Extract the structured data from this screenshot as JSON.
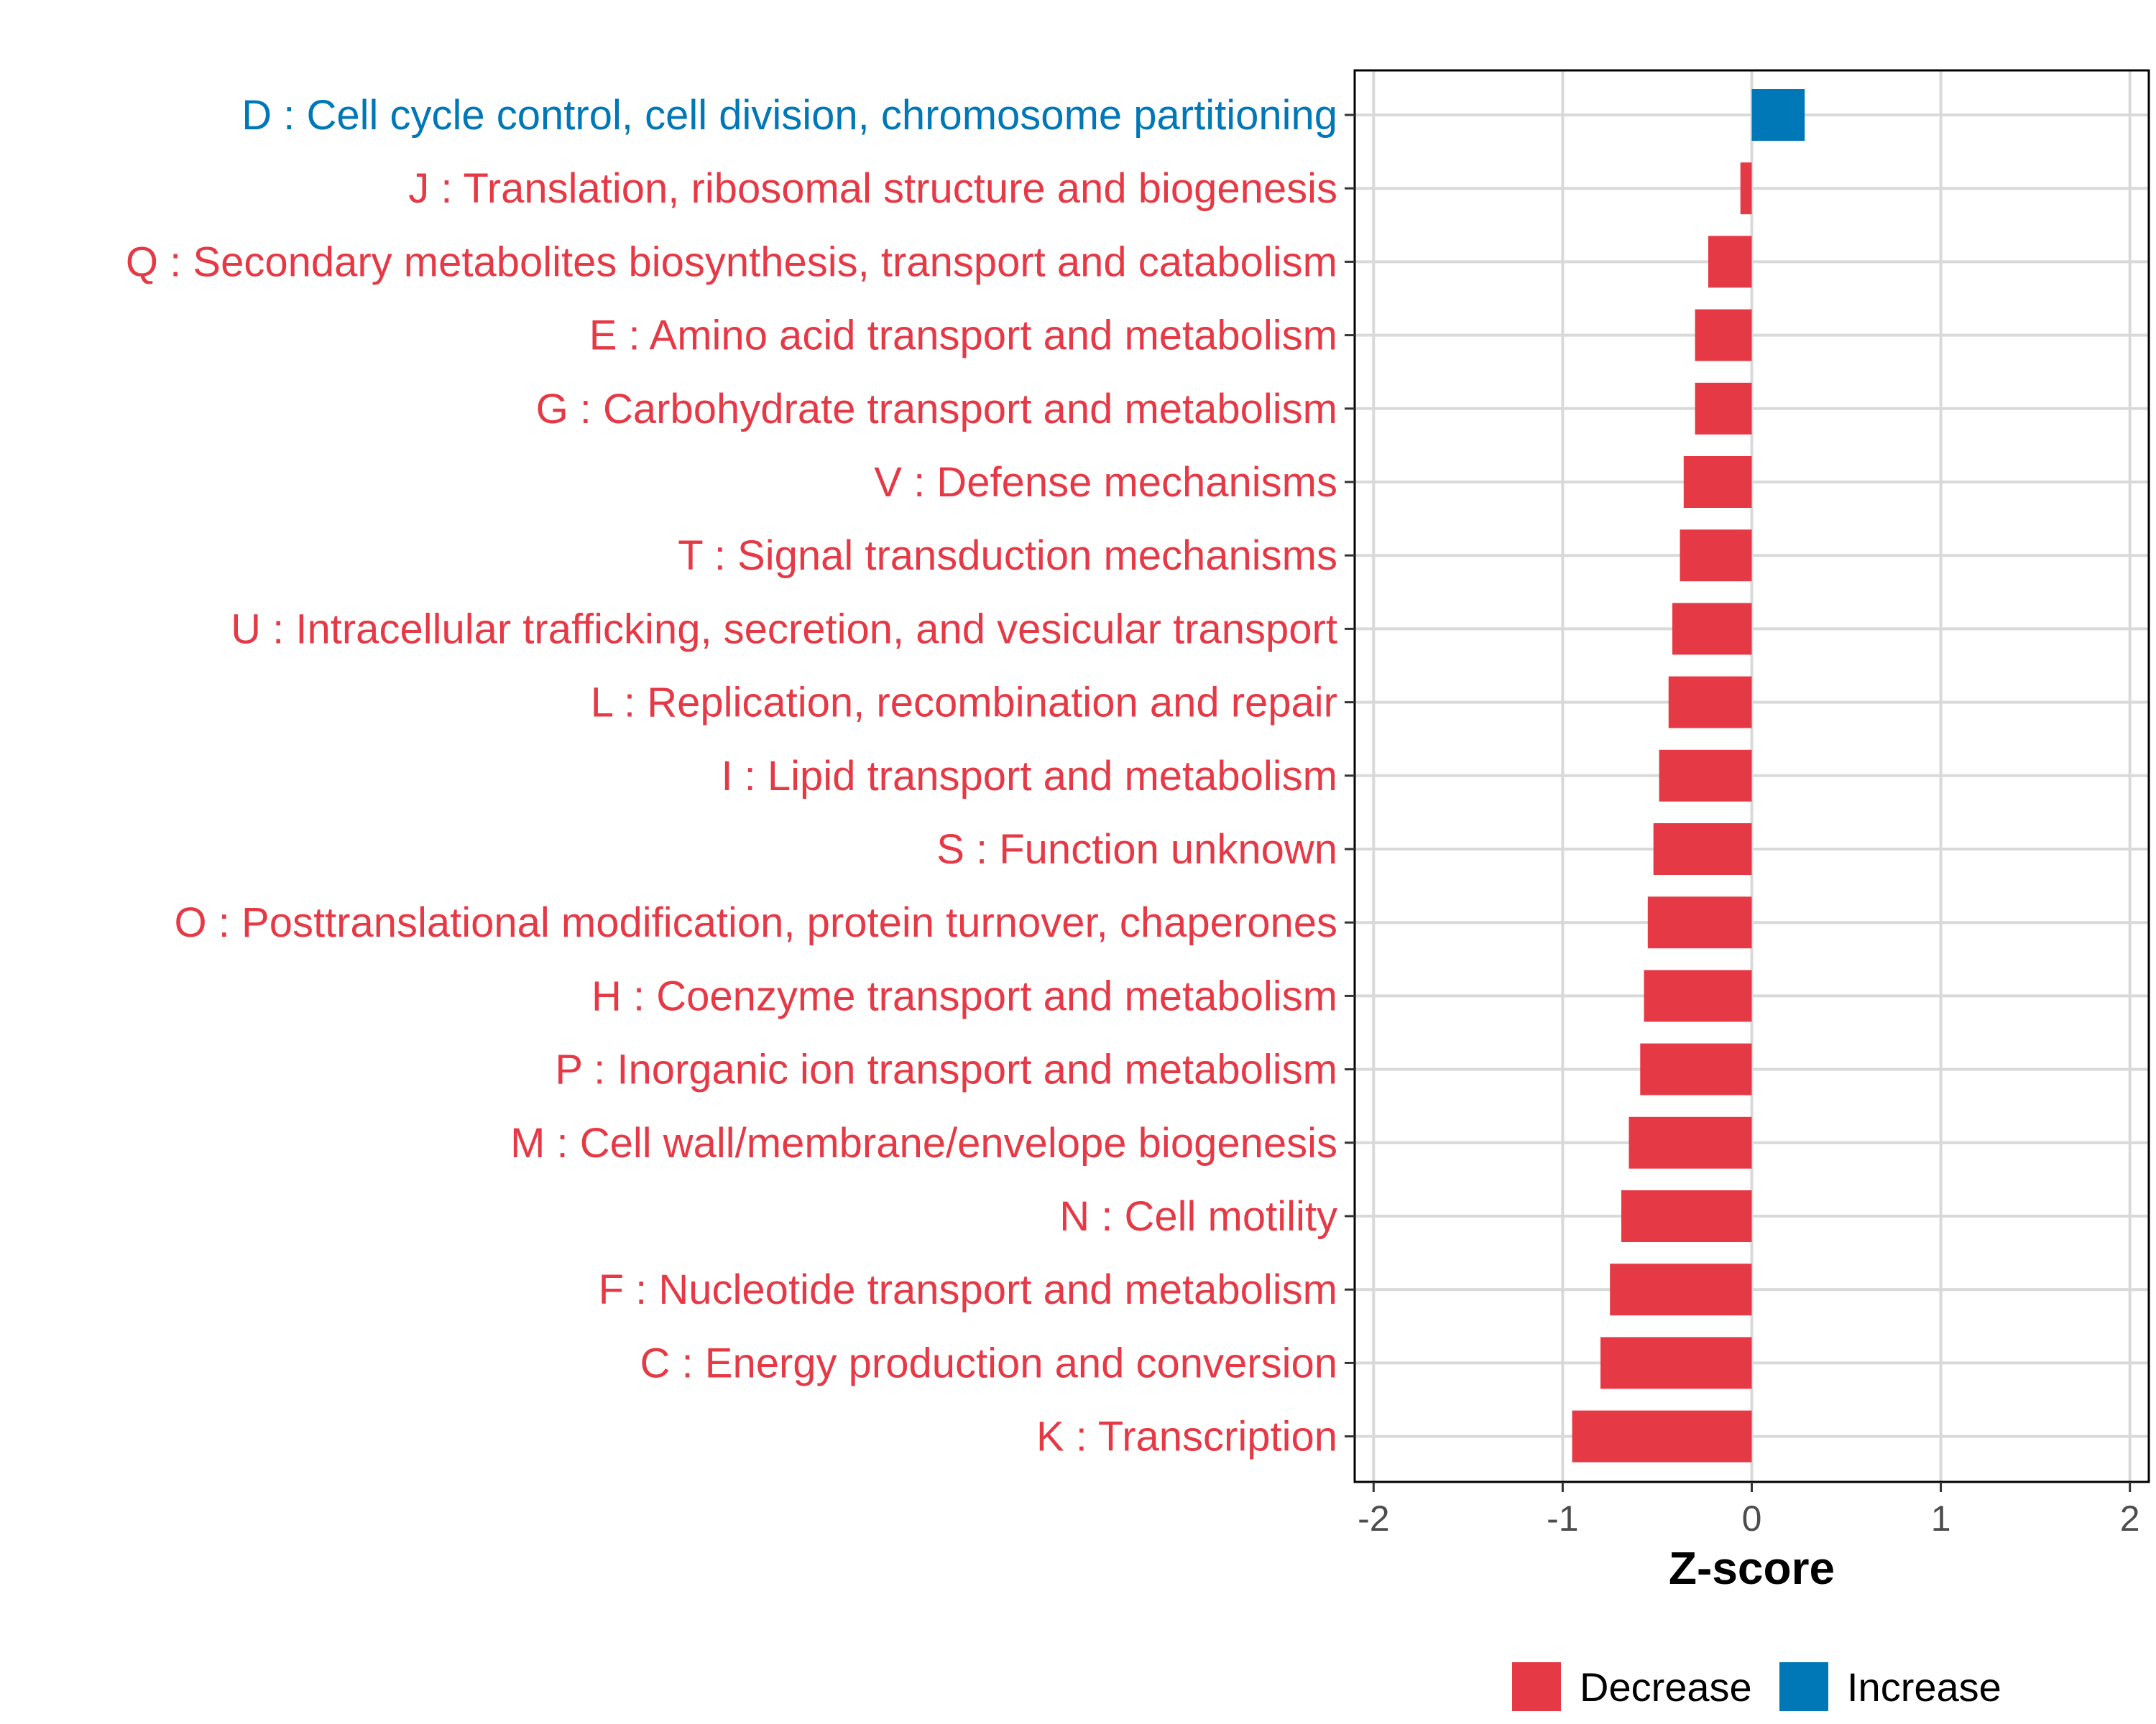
{
  "chart_data": {
    "type": "bar",
    "orientation": "horizontal",
    "title": "",
    "xlabel": "Z-score",
    "ylabel": "",
    "xlim": [
      -2.1,
      2.1
    ],
    "xticks": [
      -2,
      -1,
      0,
      1,
      2
    ],
    "xtick_labels": [
      "-2",
      "-1",
      "0",
      "1",
      "2"
    ],
    "grid": true,
    "legend_position": "bottom",
    "colors": {
      "Decrease": "#E63946",
      "Increase": "#0077B6",
      "grid": "#d9d9d9",
      "frame": "#000000"
    },
    "legend": [
      {
        "name": "Decrease",
        "color": "#E63946"
      },
      {
        "name": "Increase",
        "color": "#0077B6"
      }
    ],
    "categories": [
      "D : Cell cycle control, cell division, chromosome partitioning",
      "J : Translation, ribosomal structure and biogenesis",
      "Q : Secondary metabolites biosynthesis, transport and catabolism",
      "E : Amino acid transport and metabolism",
      "G : Carbohydrate transport and metabolism",
      "V : Defense mechanisms",
      "T : Signal transduction mechanisms",
      "U : Intracellular trafficking, secretion, and vesicular transport",
      "L : Replication, recombination and repair",
      "I : Lipid transport and metabolism",
      "S : Function unknown",
      "O : Posttranslational modification, protein turnover, chaperones",
      "H : Coenzyme transport and metabolism",
      "P : Inorganic ion transport and metabolism",
      "M : Cell wall/membrane/envelope biogenesis",
      "N : Cell motility",
      "F : Nucleotide transport and metabolism",
      "C : Energy production and conversion",
      "K : Transcription"
    ],
    "values": [
      0.28,
      -0.06,
      -0.23,
      -0.3,
      -0.3,
      -0.36,
      -0.38,
      -0.42,
      -0.44,
      -0.49,
      -0.52,
      -0.55,
      -0.57,
      -0.59,
      -0.65,
      -0.69,
      -0.75,
      -0.8,
      -0.95
    ],
    "direction": [
      "Increase",
      "Decrease",
      "Decrease",
      "Decrease",
      "Decrease",
      "Decrease",
      "Decrease",
      "Decrease",
      "Decrease",
      "Decrease",
      "Decrease",
      "Decrease",
      "Decrease",
      "Decrease",
      "Decrease",
      "Decrease",
      "Decrease",
      "Decrease",
      "Decrease"
    ]
  }
}
